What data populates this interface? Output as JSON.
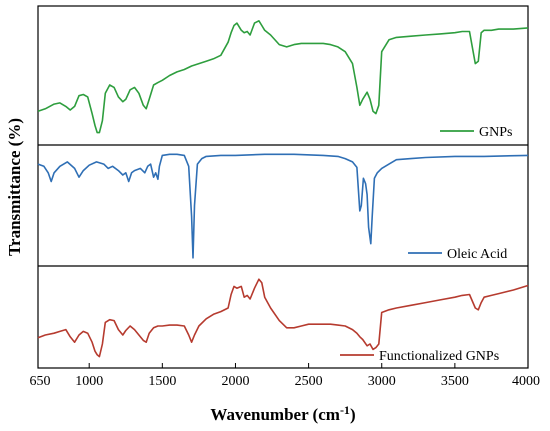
{
  "chart_data": {
    "type": "line",
    "xlabel": "Wavenumber (cm",
    "xlabel_sup": "-1",
    "xlabel_end": ")",
    "ylabel": "Transmittance (%)",
    "xlim": [
      650,
      4000
    ],
    "xticks": [
      650,
      1000,
      1500,
      2000,
      2500,
      3000,
      3500,
      4000
    ],
    "y_tick_labels": false,
    "legend_placement": "bottom-right of each panel",
    "panels": [
      {
        "name": "GNPs",
        "color": "#2e9e3e",
        "x": [
          650,
          700,
          760,
          800,
          840,
          870,
          900,
          930,
          960,
          990,
          1020,
          1040,
          1055,
          1070,
          1090,
          1110,
          1140,
          1170,
          1200,
          1230,
          1250,
          1280,
          1310,
          1340,
          1370,
          1390,
          1410,
          1440,
          1470,
          1500,
          1550,
          1600,
          1650,
          1700,
          1750,
          1800,
          1850,
          1900,
          1950,
          1970,
          1990,
          2010,
          2040,
          2060,
          2080,
          2100,
          2130,
          2160,
          2180,
          2200,
          2240,
          2300,
          2350,
          2400,
          2450,
          2500,
          2550,
          2600,
          2650,
          2700,
          2750,
          2800,
          2830,
          2850,
          2870,
          2900,
          2920,
          2940,
          2960,
          2980,
          3000,
          3050,
          3100,
          3200,
          3300,
          3400,
          3500,
          3550,
          3600,
          3640,
          3660,
          3680,
          3700,
          3750,
          3800,
          3900,
          4000
        ],
        "y": [
          0.2,
          0.22,
          0.26,
          0.27,
          0.24,
          0.21,
          0.24,
          0.33,
          0.34,
          0.32,
          0.18,
          0.08,
          0.02,
          0.02,
          0.12,
          0.35,
          0.42,
          0.4,
          0.32,
          0.28,
          0.3,
          0.38,
          0.4,
          0.35,
          0.25,
          0.22,
          0.3,
          0.42,
          0.44,
          0.46,
          0.5,
          0.53,
          0.55,
          0.58,
          0.6,
          0.62,
          0.64,
          0.67,
          0.78,
          0.86,
          0.92,
          0.94,
          0.88,
          0.86,
          0.87,
          0.84,
          0.94,
          0.96,
          0.92,
          0.88,
          0.84,
          0.76,
          0.74,
          0.76,
          0.77,
          0.77,
          0.77,
          0.77,
          0.76,
          0.74,
          0.7,
          0.6,
          0.4,
          0.25,
          0.3,
          0.36,
          0.3,
          0.2,
          0.18,
          0.25,
          0.7,
          0.8,
          0.82,
          0.83,
          0.84,
          0.85,
          0.86,
          0.87,
          0.87,
          0.6,
          0.62,
          0.86,
          0.88,
          0.88,
          0.89,
          0.89,
          0.9
        ]
      },
      {
        "name": "Oleic Acid",
        "color": "#2f6fb5",
        "x": [
          650,
          690,
          720,
          740,
          760,
          800,
          850,
          900,
          930,
          960,
          1000,
          1050,
          1100,
          1130,
          1160,
          1200,
          1230,
          1250,
          1270,
          1290,
          1310,
          1350,
          1380,
          1400,
          1420,
          1440,
          1455,
          1470,
          1480,
          1500,
          1550,
          1600,
          1650,
          1680,
          1700,
          1710,
          1720,
          1740,
          1770,
          1800,
          1900,
          2000,
          2200,
          2400,
          2600,
          2700,
          2750,
          2800,
          2830,
          2850,
          2860,
          2875,
          2890,
          2900,
          2910,
          2925,
          2935,
          2950,
          2970,
          3000,
          3050,
          3100,
          3200,
          3300,
          3500,
          3700,
          4000
        ],
        "y": [
          0.88,
          0.86,
          0.8,
          0.72,
          0.8,
          0.86,
          0.9,
          0.84,
          0.76,
          0.82,
          0.87,
          0.9,
          0.88,
          0.84,
          0.86,
          0.82,
          0.78,
          0.8,
          0.72,
          0.8,
          0.82,
          0.84,
          0.8,
          0.86,
          0.88,
          0.76,
          0.8,
          0.74,
          0.86,
          0.96,
          0.97,
          0.97,
          0.96,
          0.86,
          0.4,
          0.02,
          0.5,
          0.88,
          0.93,
          0.95,
          0.96,
          0.96,
          0.97,
          0.97,
          0.96,
          0.95,
          0.93,
          0.9,
          0.85,
          0.45,
          0.5,
          0.75,
          0.7,
          0.6,
          0.3,
          0.15,
          0.4,
          0.75,
          0.8,
          0.84,
          0.88,
          0.92,
          0.93,
          0.94,
          0.95,
          0.95,
          0.96
        ]
      },
      {
        "name": "Functionalized GNPs",
        "color": "#b63b2f",
        "x": [
          650,
          700,
          760,
          800,
          840,
          870,
          900,
          930,
          960,
          990,
          1020,
          1040,
          1055,
          1070,
          1090,
          1110,
          1140,
          1170,
          1200,
          1230,
          1250,
          1280,
          1310,
          1340,
          1370,
          1390,
          1410,
          1440,
          1470,
          1500,
          1550,
          1600,
          1650,
          1680,
          1700,
          1720,
          1750,
          1800,
          1850,
          1900,
          1950,
          1970,
          1990,
          2010,
          2040,
          2060,
          2080,
          2100,
          2130,
          2160,
          2180,
          2200,
          2240,
          2300,
          2350,
          2400,
          2450,
          2500,
          2550,
          2600,
          2650,
          2700,
          2750,
          2800,
          2830,
          2850,
          2870,
          2900,
          2920,
          2940,
          2960,
          2980,
          3000,
          3050,
          3100,
          3200,
          3300,
          3400,
          3500,
          3550,
          3600,
          3640,
          3660,
          3680,
          3700,
          3750,
          3800,
          3900,
          4000
        ],
        "y": [
          0.27,
          0.3,
          0.32,
          0.34,
          0.36,
          0.28,
          0.22,
          0.3,
          0.34,
          0.32,
          0.22,
          0.12,
          0.08,
          0.06,
          0.2,
          0.44,
          0.47,
          0.46,
          0.36,
          0.3,
          0.35,
          0.4,
          0.36,
          0.3,
          0.24,
          0.22,
          0.32,
          0.38,
          0.4,
          0.4,
          0.41,
          0.41,
          0.4,
          0.3,
          0.22,
          0.3,
          0.4,
          0.48,
          0.53,
          0.56,
          0.6,
          0.75,
          0.84,
          0.82,
          0.84,
          0.72,
          0.74,
          0.7,
          0.82,
          0.92,
          0.88,
          0.72,
          0.6,
          0.46,
          0.38,
          0.38,
          0.4,
          0.42,
          0.42,
          0.42,
          0.42,
          0.41,
          0.4,
          0.36,
          0.32,
          0.28,
          0.25,
          0.18,
          0.2,
          0.14,
          0.16,
          0.2,
          0.55,
          0.58,
          0.6,
          0.63,
          0.66,
          0.69,
          0.72,
          0.74,
          0.75,
          0.6,
          0.58,
          0.66,
          0.72,
          0.74,
          0.76,
          0.8,
          0.85
        ]
      }
    ]
  }
}
